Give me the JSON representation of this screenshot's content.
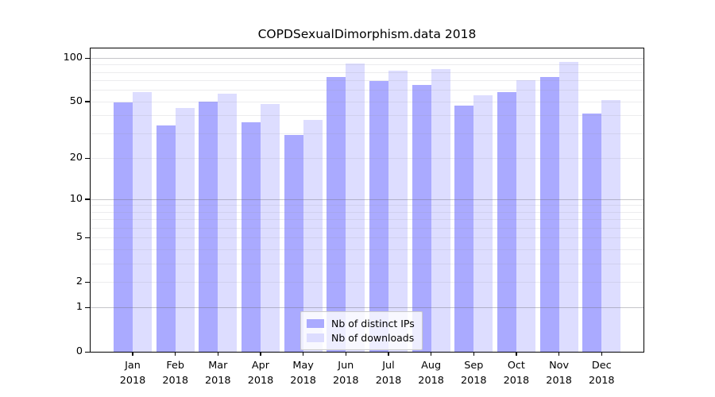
{
  "chart_data": {
    "type": "bar",
    "title": "COPDSexualDimorphism.data 2018",
    "categories": [
      "Jan",
      "Feb",
      "Mar",
      "Apr",
      "May",
      "Jun",
      "Jul",
      "Aug",
      "Sep",
      "Oct",
      "Nov",
      "Dec"
    ],
    "x_tick_year": "2018",
    "series": [
      {
        "name": "Nb of distinct IPs",
        "color": "#aaaaff",
        "values": [
          49,
          34,
          50,
          36,
          29,
          74,
          69,
          65,
          47,
          58,
          74,
          41
        ]
      },
      {
        "name": "Nb of downloads",
        "color": "#ddddff",
        "values": [
          58,
          45,
          57,
          48,
          37,
          92,
          82,
          84,
          55,
          70,
          94,
          51
        ]
      }
    ],
    "xlabel": "",
    "ylabel": "",
    "y_scale": "log1p",
    "ylim": [
      0,
      117
    ],
    "y_ticks": [
      100,
      50,
      20,
      10,
      5,
      2,
      1,
      0
    ],
    "y_major_gridlines": [
      100,
      10,
      1
    ],
    "y_minor_gridlines": [
      90,
      80,
      70,
      60,
      50,
      40,
      30,
      20,
      9,
      8,
      7,
      6,
      5,
      4,
      3,
      2
    ],
    "grid": true,
    "legend_position": "bottom-center"
  },
  "colors": {
    "background": "#ffffff",
    "axis": "#000000",
    "major_grid": "#c3c3c9",
    "minor_grid": "#e9e9ec",
    "legend_border": "#cccccc"
  }
}
